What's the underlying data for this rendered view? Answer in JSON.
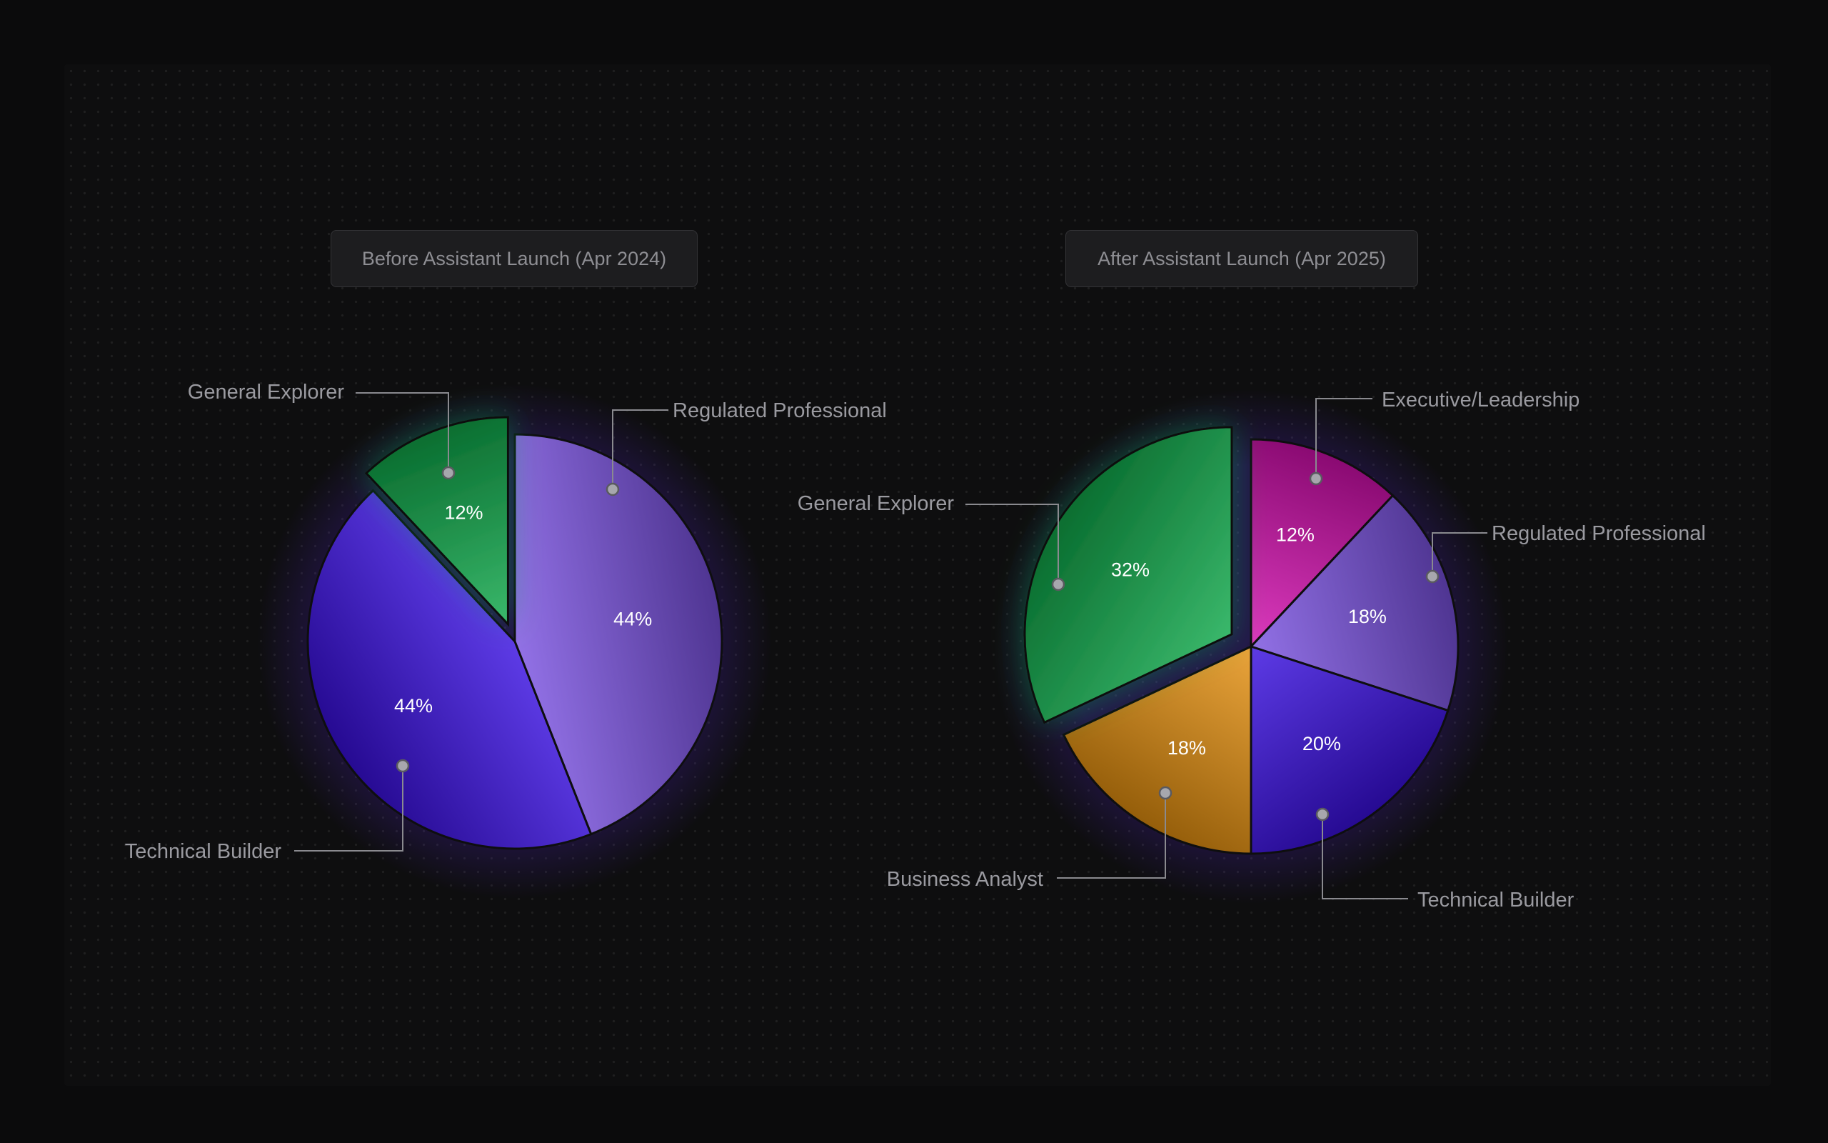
{
  "colors": {
    "general_explorer": "#0fa94a",
    "regulated_professional": "#7a52e0",
    "technical_builder": "#3a10e0",
    "executive_leadership": "#d40fb0",
    "business_analyst": "#e59010"
  },
  "chart_data": [
    {
      "type": "pie",
      "title": "Before Assistant Launch (Apr 2024)",
      "slices": [
        {
          "label": "Regulated Professional",
          "value": 44,
          "display": "44%",
          "color_key": "regulated_professional"
        },
        {
          "label": "Technical Builder",
          "value": 44,
          "display": "44%",
          "color_key": "technical_builder"
        },
        {
          "label": "General Explorer",
          "value": 12,
          "display": "12%",
          "color_key": "general_explorer",
          "exploded": true
        }
      ]
    },
    {
      "type": "pie",
      "title": "After Assistant Launch (Apr 2025)",
      "slices": [
        {
          "label": "Executive/Leadership",
          "value": 12,
          "display": "12%",
          "color_key": "executive_leadership"
        },
        {
          "label": "Regulated Professional",
          "value": 18,
          "display": "18%",
          "color_key": "regulated_professional"
        },
        {
          "label": "Technical Builder",
          "value": 20,
          "display": "20%",
          "color_key": "technical_builder"
        },
        {
          "label": "Business Analyst",
          "value": 18,
          "display": "18%",
          "color_key": "business_analyst"
        },
        {
          "label": "General Explorer",
          "value": 32,
          "display": "32%",
          "color_key": "general_explorer",
          "exploded": true
        }
      ]
    }
  ]
}
